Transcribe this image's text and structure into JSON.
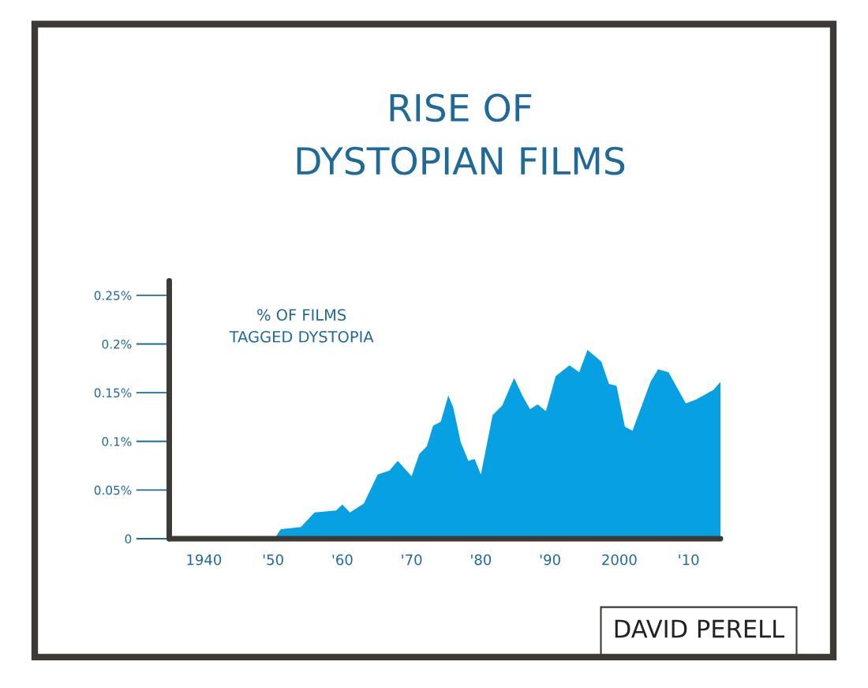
{
  "chart_data": {
    "type": "area",
    "title": "RISE OF\nDYSTOPIAN FILMS",
    "color": "#06a0e3",
    "x": [
      1950.2,
      1951.1,
      1954,
      1956,
      1959.1,
      1960,
      1961.1,
      1963.1,
      1965.1,
      1966.8,
      1968,
      1970,
      1971.1,
      1972.2,
      1973.1,
      1974.2,
      1975.3,
      1976,
      1977.1,
      1978.2,
      1979.1,
      1980,
      1981.7,
      1983.1,
      1984.8,
      1986,
      1987.1,
      1988.2,
      1989.4,
      1990.8,
      1992.8,
      1994.2,
      1995.4,
      1997.4,
      1998.5,
      1999.6,
      2000.8,
      2001.9,
      2004.5,
      2005.6,
      2007.1,
      2009.6,
      2011.1,
      2013.6,
      2014.6
    ],
    "values": [
      0,
      0.0097,
      0.012,
      0.027,
      0.029,
      0.035,
      0.027,
      0.036,
      0.066,
      0.07,
      0.08,
      0.064,
      0.087,
      0.095,
      0.116,
      0.12,
      0.147,
      0.135,
      0.099,
      0.08,
      0.082,
      0.066,
      0.127,
      0.137,
      0.165,
      0.147,
      0.133,
      0.138,
      0.131,
      0.167,
      0.178,
      0.171,
      0.194,
      0.182,
      0.159,
      0.157,
      0.115,
      0.111,
      0.161,
      0.174,
      0.171,
      0.139,
      0.143,
      0.153,
      0.161
    ],
    "xlim": [
      1935,
      2014.6
    ],
    "xticks": [
      1940,
      {
        "value": 1950,
        "label": "'50"
      },
      {
        "value": 1960,
        "label": "'60"
      },
      {
        "value": 1970,
        "label": "'70"
      },
      {
        "value": 1980,
        "label": "'80"
      },
      {
        "value": 1990,
        "label": "'90"
      },
      2000,
      {
        "value": 2010,
        "label": "'10"
      }
    ],
    "ylim": [
      0,
      0.265
    ],
    "yticks": [
      0,
      {
        "value": 0.05,
        "label": "0.05%"
      },
      {
        "value": 0.1,
        "label": "0.1%"
      },
      {
        "value": 0.15,
        "label": "0.15%"
      },
      {
        "value": 0.2,
        "label": "0.2%"
      },
      {
        "value": 0.25,
        "label": "0.25%"
      }
    ],
    "annotations": [
      "% OF FILMS\nTAGGED DYSTOPIA",
      "DAVID PERELL"
    ],
    "grid": false,
    "legend": false
  }
}
